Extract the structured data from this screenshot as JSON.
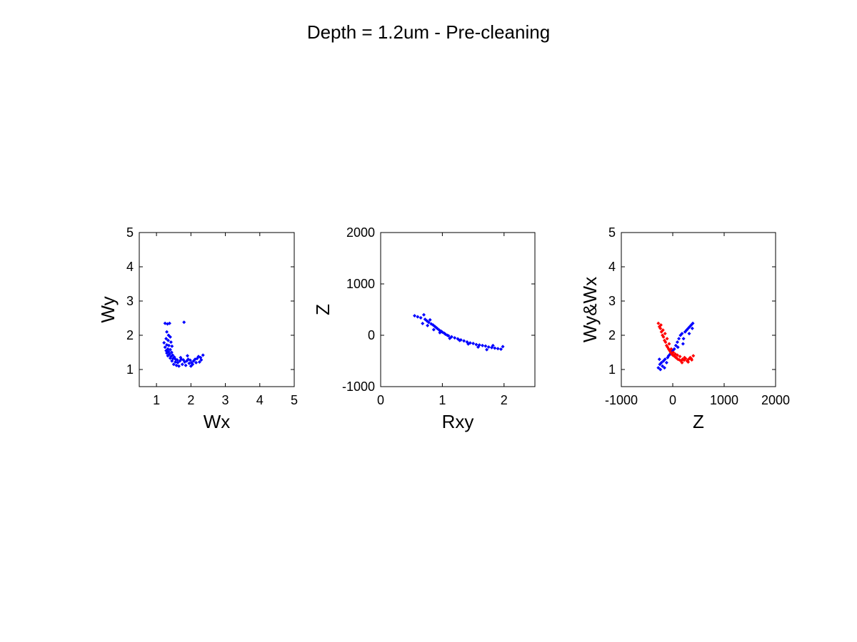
{
  "figure": {
    "title": "Depth = 1.2um - Pre-cleaning"
  },
  "colors": {
    "series_blue": "#0000ff",
    "series_red": "#ff0000",
    "axes": "#000000",
    "background": "#ffffff"
  },
  "chart_data": [
    {
      "type": "scatter",
      "title": "",
      "xlabel": "Wx",
      "ylabel": "Wy",
      "xlim": [
        0.5,
        5
      ],
      "ylim": [
        0.5,
        5
      ],
      "xticks": [
        1,
        2,
        3,
        4,
        5
      ],
      "yticks": [
        1,
        2,
        3,
        4,
        5
      ],
      "grid": false,
      "series": [
        {
          "color": "#0000ff",
          "marker": "dot",
          "points": [
            [
              1.25,
              2.35
            ],
            [
              1.32,
              2.33
            ],
            [
              1.38,
              2.35
            ],
            [
              1.8,
              2.38
            ],
            [
              1.3,
              2.1
            ],
            [
              1.35,
              2.0
            ],
            [
              1.4,
              1.95
            ],
            [
              1.28,
              1.9
            ],
            [
              1.34,
              1.85
            ],
            [
              1.42,
              1.8
            ],
            [
              1.22,
              1.78
            ],
            [
              1.3,
              1.72
            ],
            [
              1.36,
              1.7
            ],
            [
              1.45,
              1.68
            ],
            [
              1.25,
              1.65
            ],
            [
              1.33,
              1.6
            ],
            [
              1.4,
              1.58
            ],
            [
              1.28,
              1.55
            ],
            [
              1.35,
              1.52
            ],
            [
              1.44,
              1.5
            ],
            [
              1.3,
              1.48
            ],
            [
              1.38,
              1.45
            ],
            [
              1.47,
              1.42
            ],
            [
              1.33,
              1.4
            ],
            [
              1.42,
              1.38
            ],
            [
              1.52,
              1.36
            ],
            [
              1.4,
              1.33
            ],
            [
              1.48,
              1.32
            ],
            [
              1.55,
              1.3
            ],
            [
              1.6,
              1.28
            ],
            [
              1.45,
              1.25
            ],
            [
              1.55,
              1.22
            ],
            [
              1.62,
              1.2
            ],
            [
              1.68,
              1.25
            ],
            [
              1.72,
              1.3
            ],
            [
              1.78,
              1.28
            ],
            [
              1.82,
              1.22
            ],
            [
              1.88,
              1.25
            ],
            [
              1.92,
              1.3
            ],
            [
              1.98,
              1.27
            ],
            [
              2.02,
              1.2
            ],
            [
              2.08,
              1.25
            ],
            [
              2.12,
              1.3
            ],
            [
              2.18,
              1.32
            ],
            [
              2.22,
              1.38
            ],
            [
              2.28,
              1.35
            ],
            [
              2.3,
              1.28
            ],
            [
              2.35,
              1.42
            ],
            [
              1.58,
              1.12
            ],
            [
              1.65,
              1.1
            ],
            [
              1.75,
              1.15
            ],
            [
              1.85,
              1.12
            ],
            [
              1.95,
              1.18
            ],
            [
              2.05,
              1.15
            ],
            [
              2.15,
              1.2
            ],
            [
              2.25,
              1.22
            ],
            [
              1.7,
              1.35
            ],
            [
              1.9,
              1.4
            ],
            [
              2.0,
              1.1
            ],
            [
              1.5,
              1.15
            ]
          ]
        }
      ]
    },
    {
      "type": "scatter",
      "title": "",
      "xlabel": "Rxy",
      "ylabel": "Z",
      "xlim": [
        0,
        2.5
      ],
      "ylim": [
        -1000,
        2000
      ],
      "xticks": [
        0,
        1,
        2
      ],
      "yticks": [
        -1000,
        0,
        1000,
        2000
      ],
      "grid": false,
      "series": [
        {
          "color": "#0000ff",
          "marker": "dot",
          "points": [
            [
              0.55,
              380
            ],
            [
              0.6,
              360
            ],
            [
              0.65,
              340
            ],
            [
              0.7,
              400
            ],
            [
              0.72,
              310
            ],
            [
              0.75,
              280
            ],
            [
              0.78,
              250
            ],
            [
              0.8,
              300
            ],
            [
              0.82,
              220
            ],
            [
              0.85,
              200
            ],
            [
              0.88,
              170
            ],
            [
              0.9,
              150
            ],
            [
              0.92,
              130
            ],
            [
              0.95,
              100
            ],
            [
              0.98,
              80
            ],
            [
              1.0,
              60
            ],
            [
              1.03,
              40
            ],
            [
              1.05,
              20
            ],
            [
              1.08,
              0
            ],
            [
              1.1,
              -10
            ],
            [
              1.15,
              -30
            ],
            [
              1.2,
              -50
            ],
            [
              1.25,
              -70
            ],
            [
              1.3,
              -90
            ],
            [
              1.35,
              -110
            ],
            [
              1.4,
              -130
            ],
            [
              1.45,
              -150
            ],
            [
              1.5,
              -160
            ],
            [
              1.55,
              -180
            ],
            [
              1.6,
              -190
            ],
            [
              1.65,
              -200
            ],
            [
              1.7,
              -210
            ],
            [
              1.75,
              -230
            ],
            [
              1.8,
              -240
            ],
            [
              1.85,
              -250
            ],
            [
              1.9,
              -260
            ],
            [
              1.95,
              -270
            ],
            [
              1.98,
              -220
            ],
            [
              0.68,
              230
            ],
            [
              0.76,
              190
            ],
            [
              0.86,
              110
            ],
            [
              0.96,
              50
            ],
            [
              1.12,
              -60
            ],
            [
              1.28,
              -100
            ],
            [
              1.42,
              -170
            ],
            [
              1.58,
              -230
            ],
            [
              1.72,
              -280
            ],
            [
              1.82,
              -200
            ]
          ]
        }
      ]
    },
    {
      "type": "scatter",
      "title": "",
      "xlabel": "Z",
      "ylabel": "Wy&Wx",
      "xlim": [
        -1000,
        2000
      ],
      "ylim": [
        0.5,
        5
      ],
      "xticks": [
        -1000,
        0,
        1000,
        2000
      ],
      "yticks": [
        1,
        2,
        3,
        4,
        5
      ],
      "grid": false,
      "series": [
        {
          "color": "#0000ff",
          "marker": "dot",
          "points": [
            [
              -280,
              1.05
            ],
            [
              -250,
              1.15
            ],
            [
              -220,
              1.2
            ],
            [
              -200,
              1.1
            ],
            [
              -180,
              1.25
            ],
            [
              -150,
              1.3
            ],
            [
              -120,
              1.2
            ],
            [
              -100,
              1.35
            ],
            [
              -80,
              1.4
            ],
            [
              -50,
              1.45
            ],
            [
              -20,
              1.5
            ],
            [
              0,
              1.55
            ],
            [
              30,
              1.6
            ],
            [
              60,
              1.7
            ],
            [
              90,
              1.8
            ],
            [
              120,
              1.9
            ],
            [
              150,
              2.0
            ],
            [
              180,
              2.05
            ],
            [
              210,
              1.9
            ],
            [
              240,
              2.1
            ],
            [
              270,
              2.15
            ],
            [
              300,
              2.2
            ],
            [
              330,
              2.25
            ],
            [
              360,
              2.3
            ],
            [
              390,
              2.35
            ],
            [
              -260,
              1.3
            ],
            [
              -240,
              1.0
            ],
            [
              -160,
              1.05
            ],
            [
              100,
              1.65
            ],
            [
              200,
              1.75
            ],
            [
              320,
              2.05
            ],
            [
              380,
              2.2
            ]
          ]
        },
        {
          "color": "#ff0000",
          "marker": "dot",
          "points": [
            [
              -280,
              2.35
            ],
            [
              -260,
              2.25
            ],
            [
              -240,
              2.2
            ],
            [
              -220,
              2.1
            ],
            [
              -200,
              2.0
            ],
            [
              -180,
              1.95
            ],
            [
              -160,
              1.85
            ],
            [
              -140,
              1.8
            ],
            [
              -120,
              1.7
            ],
            [
              -100,
              1.65
            ],
            [
              -80,
              1.6
            ],
            [
              -60,
              1.55
            ],
            [
              -40,
              1.5
            ],
            [
              -20,
              1.45
            ],
            [
              0,
              1.42
            ],
            [
              20,
              1.4
            ],
            [
              40,
              1.38
            ],
            [
              60,
              1.35
            ],
            [
              80,
              1.33
            ],
            [
              100,
              1.3
            ],
            [
              130,
              1.28
            ],
            [
              160,
              1.25
            ],
            [
              190,
              1.3
            ],
            [
              220,
              1.27
            ],
            [
              250,
              1.32
            ],
            [
              280,
              1.25
            ],
            [
              310,
              1.3
            ],
            [
              340,
              1.35
            ],
            [
              370,
              1.28
            ],
            [
              400,
              1.4
            ],
            [
              -230,
              2.3
            ],
            [
              -190,
              2.15
            ],
            [
              -150,
              2.05
            ],
            [
              -110,
              1.9
            ],
            [
              -70,
              1.75
            ],
            [
              -30,
              1.6
            ],
            [
              10,
              1.5
            ],
            [
              50,
              1.45
            ],
            [
              90,
              1.42
            ],
            [
              140,
              1.38
            ],
            [
              180,
              1.2
            ],
            [
              230,
              1.35
            ],
            [
              300,
              1.22
            ],
            [
              360,
              1.32
            ]
          ]
        }
      ]
    }
  ]
}
